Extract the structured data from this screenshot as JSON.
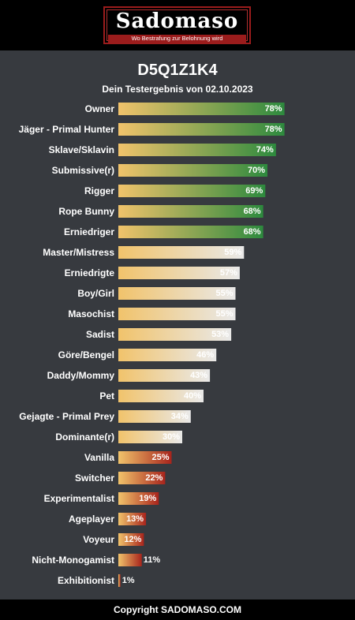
{
  "logo": {
    "wordmark": "Sadomaso",
    "tagline": "Wo Bestrafung zur Belohnung wird"
  },
  "header": {
    "title": "D5Q1Z1K4",
    "subtitle": "Dein Testergebnis von 02.10.2023"
  },
  "footer": {
    "copyright": "Copyright SADOMASO.COM"
  },
  "colors": {
    "background": "#373a3f",
    "gradient_start": "#f1c36b",
    "high": "#2d8a3e",
    "mid": "#e9e9e9",
    "low": "#a8241c"
  },
  "chart_data": {
    "type": "bar",
    "orientation": "horizontal",
    "xlim": [
      0,
      100
    ],
    "value_suffix": "%",
    "categories": [
      "Owner",
      "Jäger - Primal Hunter",
      "Sklave/Sklavin",
      "Submissive(r)",
      "Rigger",
      "Rope Bunny",
      "Erniedriger",
      "Master/Mistress",
      "Erniedrigte",
      "Boy/Girl",
      "Masochist",
      "Sadist",
      "Göre/Bengel",
      "Daddy/Mommy",
      "Pet",
      "Gejagte - Primal Prey",
      "Dominante(r)",
      "Vanilla",
      "Switcher",
      "Experimentalist",
      "Ageplayer",
      "Voyeur",
      "Nicht-Monogamist",
      "Exhibitionist"
    ],
    "values": [
      78,
      78,
      74,
      70,
      69,
      68,
      68,
      59,
      57,
      55,
      55,
      53,
      46,
      43,
      40,
      34,
      30,
      25,
      22,
      19,
      13,
      12,
      11,
      1
    ],
    "labels": [
      "78%",
      "78%",
      "74%",
      "70%",
      "69%",
      "68%",
      "68%",
      "59%",
      "57%",
      "55%",
      "55%",
      "53%",
      "46%",
      "43%",
      "40%",
      "34%",
      "30%",
      "25%",
      "22%",
      "19%",
      "13%",
      "12%",
      "11%",
      "1%"
    ]
  }
}
